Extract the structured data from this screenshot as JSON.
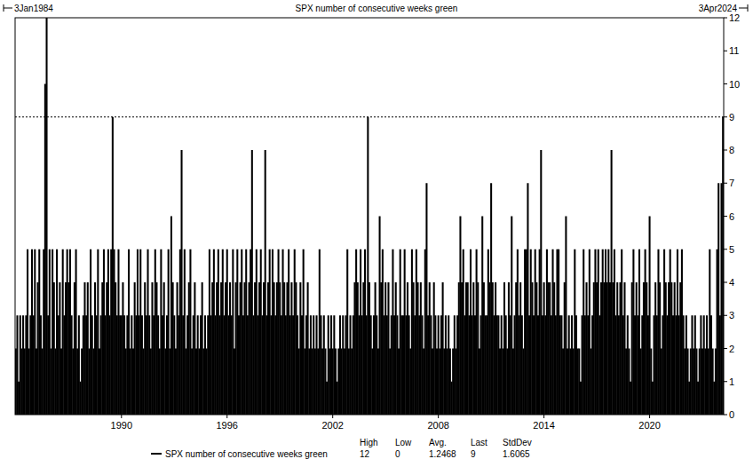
{
  "chart_data": {
    "type": "bar",
    "title": "SPX number of consecutive weeks green",
    "start_date": "3Jan1984",
    "end_date": "3Apr2024",
    "categories": [
      null,
      null,
      null,
      null,
      null,
      null,
      null,
      null,
      null,
      null,
      null,
      null,
      null,
      null,
      null,
      null,
      null,
      null,
      null,
      null,
      null,
      null,
      null,
      null,
      null,
      null,
      null,
      null,
      null,
      null,
      null,
      null,
      null,
      null,
      null,
      null,
      null,
      null,
      null,
      null,
      null,
      null,
      null,
      null,
      null,
      null,
      null,
      null,
      null,
      null,
      null,
      null,
      null,
      null,
      null,
      null,
      null,
      null,
      null,
      null,
      null,
      null,
      null,
      null,
      null,
      null,
      null,
      null,
      null,
      null,
      null,
      null,
      "1990",
      null,
      null,
      null,
      null,
      null,
      null,
      null,
      null,
      null,
      null,
      null,
      null,
      null,
      null,
      null,
      null,
      null,
      null,
      null,
      null,
      null,
      null,
      null,
      null,
      null,
      null,
      null,
      null,
      null,
      null,
      null,
      null,
      null,
      null,
      null,
      null,
      null,
      null,
      null,
      null,
      null,
      null,
      null,
      null,
      null,
      null,
      null,
      null,
      null,
      null,
      null,
      null,
      null,
      null,
      null,
      null,
      null,
      null,
      null,
      null,
      null,
      null,
      null,
      null,
      null,
      null,
      null,
      null,
      null,
      null,
      null,
      "1996",
      null,
      null,
      null,
      null,
      null,
      null,
      null,
      null,
      null,
      null,
      null,
      null,
      null,
      null,
      null,
      null,
      null,
      null,
      null,
      null,
      null,
      null,
      null,
      null,
      null,
      null,
      null,
      null,
      null,
      null,
      null,
      null,
      null,
      null,
      null,
      null,
      null,
      null,
      null,
      null,
      null,
      null,
      null,
      null,
      null,
      null,
      null,
      null,
      null,
      null,
      null,
      null,
      null,
      null,
      null,
      null,
      null,
      null,
      null,
      null,
      null,
      null,
      null,
      null,
      null,
      null,
      null,
      null,
      null,
      null,
      null,
      "2002",
      null,
      null,
      null,
      null,
      null,
      null,
      null,
      null,
      null,
      null,
      null,
      null,
      null,
      null,
      null,
      null,
      null,
      null,
      null,
      null,
      null,
      null,
      null,
      null,
      null,
      null,
      null,
      null,
      null,
      null,
      null,
      null,
      null,
      null,
      null,
      null,
      null,
      null,
      null,
      null,
      null,
      null,
      null,
      null,
      null,
      null,
      null,
      null,
      null,
      null,
      null,
      null,
      null,
      null,
      null,
      null,
      null,
      null,
      null,
      null,
      null,
      null,
      null,
      null,
      null,
      null,
      null,
      null,
      null,
      null,
      null,
      "2008",
      null,
      null,
      null,
      null,
      null,
      null,
      null,
      null,
      null,
      null,
      null,
      null,
      null,
      null,
      null,
      null,
      null,
      null,
      null,
      null,
      null,
      null,
      null,
      null,
      null,
      null,
      null,
      null,
      null,
      null,
      null,
      null,
      null,
      null,
      null,
      null,
      null,
      null,
      null,
      null,
      null,
      null,
      null,
      null,
      null,
      null,
      null,
      null,
      null,
      null,
      null,
      null,
      null,
      null,
      null,
      null,
      null,
      null,
      null,
      null,
      null,
      null,
      null,
      null,
      null,
      null,
      null,
      null,
      null,
      null,
      null,
      "2014",
      null,
      null,
      null,
      null,
      null,
      null,
      null,
      null,
      null,
      null,
      null,
      null,
      null,
      null,
      null,
      null,
      null,
      null,
      null,
      null,
      null,
      null,
      null,
      null,
      null,
      null,
      null,
      null,
      null,
      null,
      null,
      null,
      null,
      null,
      null,
      null,
      null,
      null,
      null,
      null,
      null,
      null,
      null,
      null,
      null,
      null,
      null,
      null,
      null,
      null,
      null,
      null,
      null,
      null,
      null,
      null,
      null,
      null,
      null,
      null,
      null,
      null,
      null,
      null,
      null,
      null,
      null,
      null,
      null,
      null,
      null,
      "2020",
      null,
      null,
      null,
      null,
      null,
      null,
      null,
      null,
      null,
      null,
      null,
      null,
      null,
      null,
      null,
      null,
      null,
      null,
      null,
      null,
      null,
      null,
      null,
      null,
      null,
      null,
      null,
      null,
      null,
      null,
      null,
      null,
      null,
      null,
      null,
      null,
      null,
      null,
      null,
      null,
      null,
      null,
      null,
      null,
      null,
      null,
      null,
      null,
      null,
      null
    ],
    "series": [
      {
        "name": "SPX number of consecutive weeks green",
        "color": "#000000",
        "values": [
          2,
          3,
          1,
          3,
          2,
          3,
          2,
          3,
          5,
          2,
          3,
          5,
          3,
          5,
          2,
          4,
          5,
          3,
          2,
          5,
          10,
          12,
          3,
          5,
          2,
          5,
          4,
          2,
          5,
          3,
          4,
          2,
          5,
          3,
          4,
          5,
          4,
          5,
          3,
          2,
          4,
          5,
          2,
          3,
          1,
          2,
          3,
          4,
          3,
          4,
          2,
          5,
          3,
          2,
          4,
          3,
          5,
          2,
          3,
          4,
          5,
          3,
          4,
          5,
          3,
          5,
          9,
          5,
          4,
          3,
          5,
          3,
          3,
          4,
          3,
          2,
          3,
          5,
          2,
          3,
          2,
          4,
          3,
          5,
          3,
          5,
          3,
          2,
          4,
          3,
          5,
          3,
          2,
          4,
          3,
          5,
          4,
          3,
          2,
          5,
          3,
          4,
          2,
          3,
          5,
          2,
          6,
          4,
          3,
          2,
          4,
          3,
          5,
          8,
          3,
          5,
          2,
          3,
          4,
          5,
          2,
          3,
          4,
          2,
          3,
          2,
          3,
          4,
          2,
          3,
          2,
          3,
          5,
          3,
          4,
          5,
          3,
          4,
          5,
          3,
          4,
          5,
          3,
          4,
          5,
          3,
          4,
          3,
          5,
          2,
          4,
          5,
          3,
          4,
          5,
          3,
          4,
          5,
          3,
          4,
          5,
          8,
          3,
          4,
          5,
          3,
          4,
          5,
          3,
          4,
          8,
          3,
          4,
          5,
          3,
          5,
          4,
          3,
          4,
          5,
          4,
          3,
          5,
          4,
          3,
          4,
          5,
          3,
          4,
          3,
          5,
          4,
          3,
          2,
          4,
          3,
          5,
          2,
          3,
          4,
          2,
          3,
          2,
          3,
          2,
          3,
          2,
          5,
          3,
          2,
          3,
          2,
          1,
          3,
          2,
          3,
          2,
          3,
          2,
          1,
          2,
          3,
          2,
          3,
          2,
          3,
          5,
          2,
          3,
          2,
          3,
          4,
          5,
          4,
          3,
          5,
          3,
          4,
          5,
          3,
          9,
          4,
          3,
          2,
          3,
          4,
          3,
          2,
          6,
          4,
          5,
          3,
          4,
          3,
          4,
          2,
          3,
          5,
          3,
          4,
          3,
          2,
          5,
          3,
          3,
          5,
          3,
          4,
          3,
          2,
          5,
          4,
          3,
          5,
          4,
          3,
          4,
          3,
          2,
          5,
          7,
          3,
          4,
          3,
          2,
          4,
          3,
          2,
          3,
          2,
          3,
          4,
          2,
          3,
          2,
          3,
          2,
          1,
          2,
          3,
          2,
          3,
          4,
          6,
          4,
          5,
          3,
          4,
          4,
          3,
          5,
          3,
          4,
          3,
          5,
          4,
          2,
          3,
          6,
          4,
          3,
          3,
          5,
          4,
          7,
          4,
          3,
          4,
          3,
          3,
          2,
          3,
          2,
          4,
          3,
          2,
          4,
          3,
          6,
          2,
          3,
          4,
          5,
          3,
          4,
          3,
          2,
          5,
          5,
          7,
          3,
          5,
          4,
          3,
          5,
          4,
          3,
          5,
          8,
          3,
          4,
          3,
          5,
          4,
          4,
          3,
          5,
          4,
          3,
          5,
          5,
          3,
          3,
          2,
          4,
          6,
          2,
          3,
          2,
          3,
          2,
          5,
          3,
          2,
          2,
          1,
          3,
          5,
          3,
          4,
          3,
          5,
          2,
          3,
          4,
          5,
          4,
          5,
          3,
          4,
          5,
          4,
          5,
          4,
          5,
          4,
          8,
          4,
          5,
          3,
          4,
          3,
          4,
          5,
          3,
          4,
          2,
          3,
          2,
          1,
          4,
          5,
          3,
          4,
          3,
          5,
          2,
          3,
          4,
          5,
          4,
          3,
          6,
          2,
          1,
          3,
          4,
          3,
          5,
          4,
          2,
          3,
          5,
          4,
          3,
          4,
          5,
          4,
          3,
          4,
          3,
          5,
          3,
          4,
          5,
          3,
          2,
          3,
          2,
          1,
          2,
          3,
          2,
          3,
          2,
          1,
          2,
          3,
          2,
          3,
          2,
          3,
          2,
          5,
          3,
          2,
          1,
          2,
          5,
          7,
          3,
          7,
          9
        ]
      }
    ],
    "ylim": [
      0,
      12
    ],
    "yticks": [
      0,
      1,
      2,
      3,
      4,
      5,
      6,
      7,
      8,
      9,
      10,
      11,
      12
    ],
    "reference_line": 9,
    "stats": {
      "labels": [
        "High",
        "Low",
        "Avg.",
        "Last",
        "StdDev"
      ],
      "values": [
        12,
        0,
        1.2468,
        9,
        1.6065
      ]
    }
  }
}
